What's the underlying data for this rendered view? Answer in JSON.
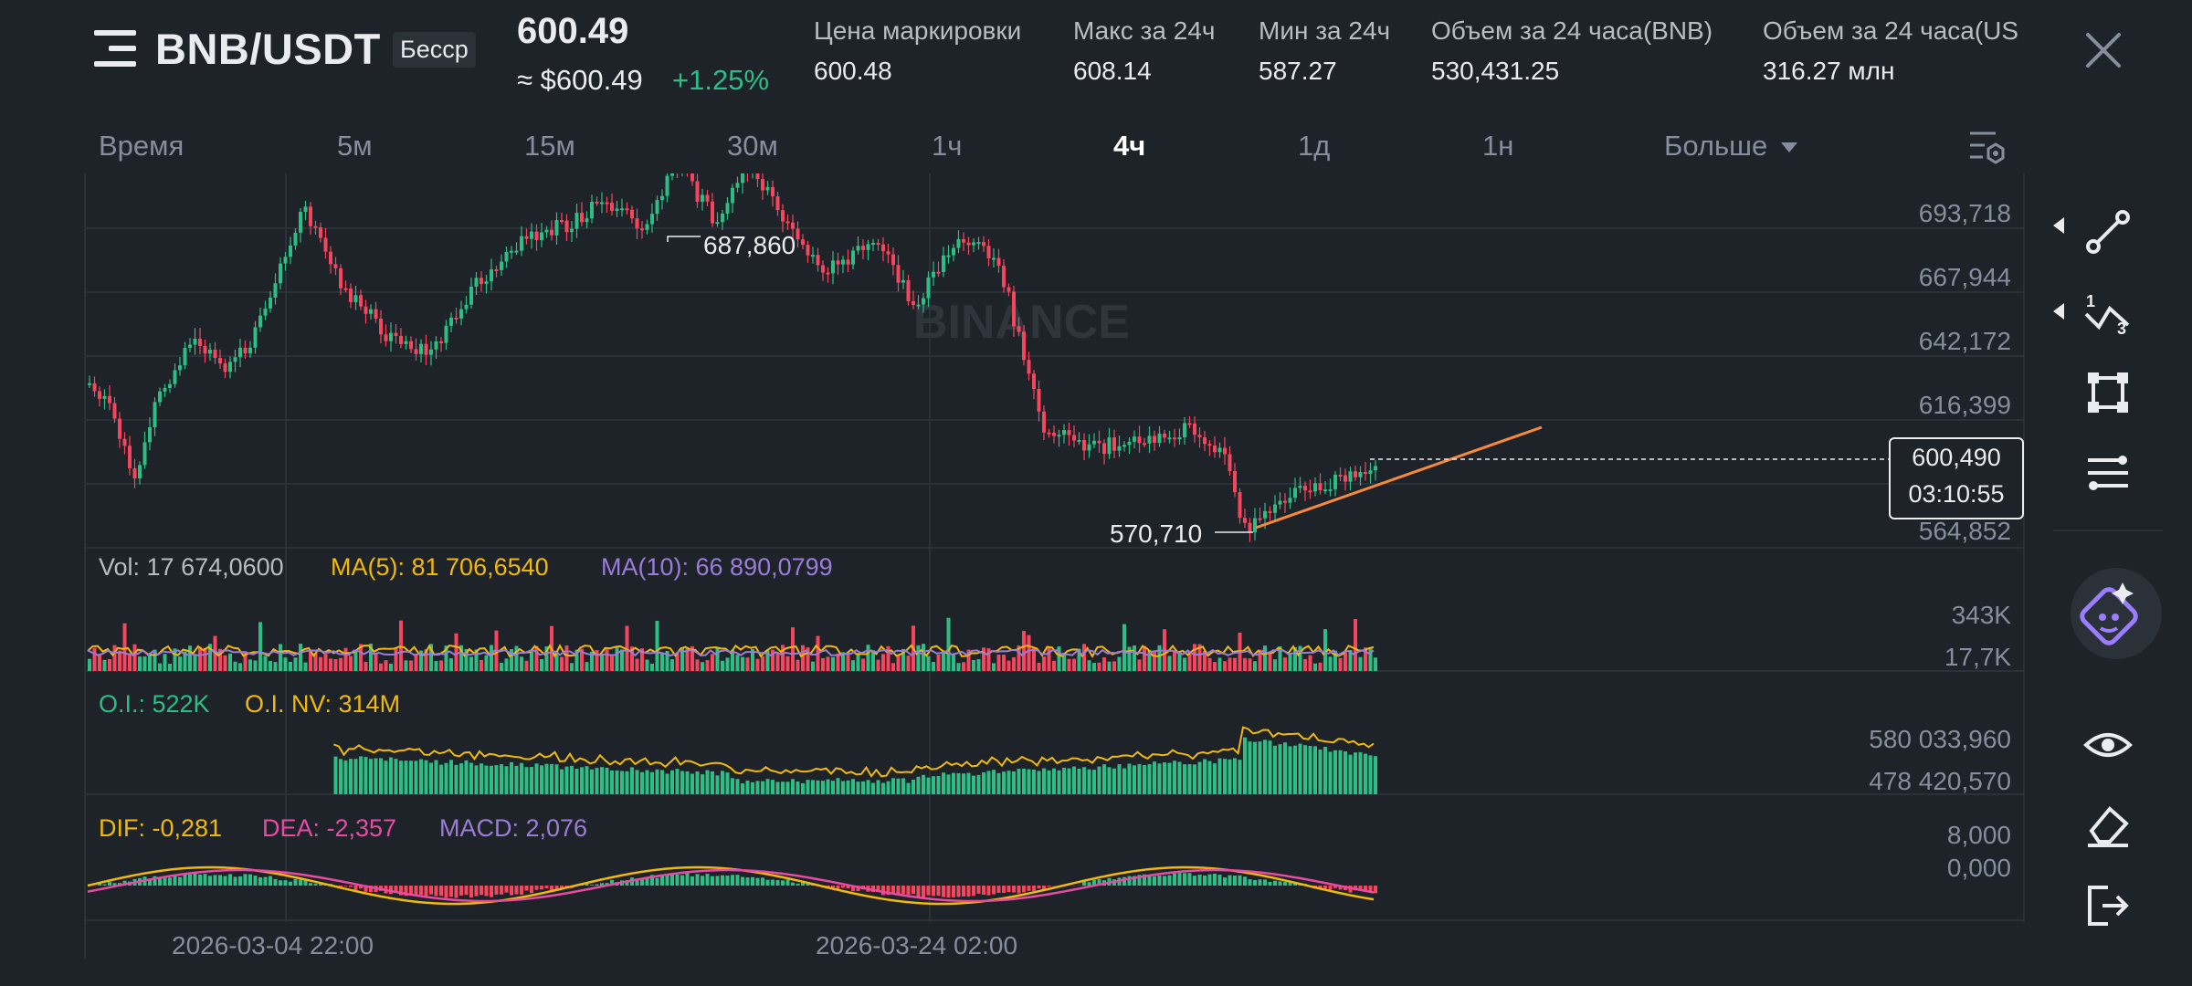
{
  "header": {
    "pair": "BNB/USDT",
    "contract_badge": "Бесср",
    "last_price": "600.49",
    "usd_price": "≈ $600.49",
    "change": "+1.25%",
    "stats": [
      {
        "label": "Цена маркировки",
        "value": "600.48"
      },
      {
        "label": "Макс за 24ч",
        "value": "608.14"
      },
      {
        "label": "Мин за 24ч",
        "value": "587.27"
      },
      {
        "label": "Объем за 24 часа(BNB)",
        "value": "530,431.25"
      },
      {
        "label": "Объем за 24 часа(US",
        "value": "316.27 млн"
      }
    ]
  },
  "tabs": [
    "Время",
    "5м",
    "15м",
    "30м",
    "1ч",
    "4ч",
    "1д",
    "1н",
    "Больше"
  ],
  "active_tab": "4ч",
  "watermark": "BINANCE",
  "chart": {
    "y_ticks": [
      "693,718",
      "667,944",
      "642,172",
      "616,399",
      "564,852"
    ],
    "high_label": "687,860",
    "low_label": "570,710",
    "current_price": "600,490",
    "countdown": "03:10:55",
    "x_ticks": [
      "2026-03-04 22:00",
      "2026-03-24 02:00"
    ]
  },
  "volume": {
    "vol": "Vol: 17 674,0600",
    "ma5": "MA(5): 81 706,6540",
    "ma10": "MA(10): 66 890,0799",
    "ticks": [
      "343K",
      "17,7K"
    ]
  },
  "oi": {
    "oi": "O.I.: 522K",
    "oinv": "O.I. NV: 314M",
    "ticks": [
      "580 033,960",
      "478 420,570"
    ]
  },
  "macd": {
    "dif": "DIF: -0,281",
    "dea": "DEA: -2,357",
    "macd": "MACD: 2,076",
    "ticks": [
      "8,000",
      "0,000"
    ]
  },
  "colors": {
    "up": "#2ebd85",
    "down": "#f6465d",
    "ma5": "#f0b90b",
    "ma10": "#9c7cd9",
    "dea": "#e84ba5",
    "trend": "#f7893b",
    "bg": "#1e2329"
  },
  "tools": [
    "trend-line-icon",
    "fibonacci-icon",
    "rectangle-icon",
    "indicator-settings-icon",
    "ai-assistant-icon",
    "eye-icon",
    "eraser-icon",
    "exit-icon"
  ]
}
